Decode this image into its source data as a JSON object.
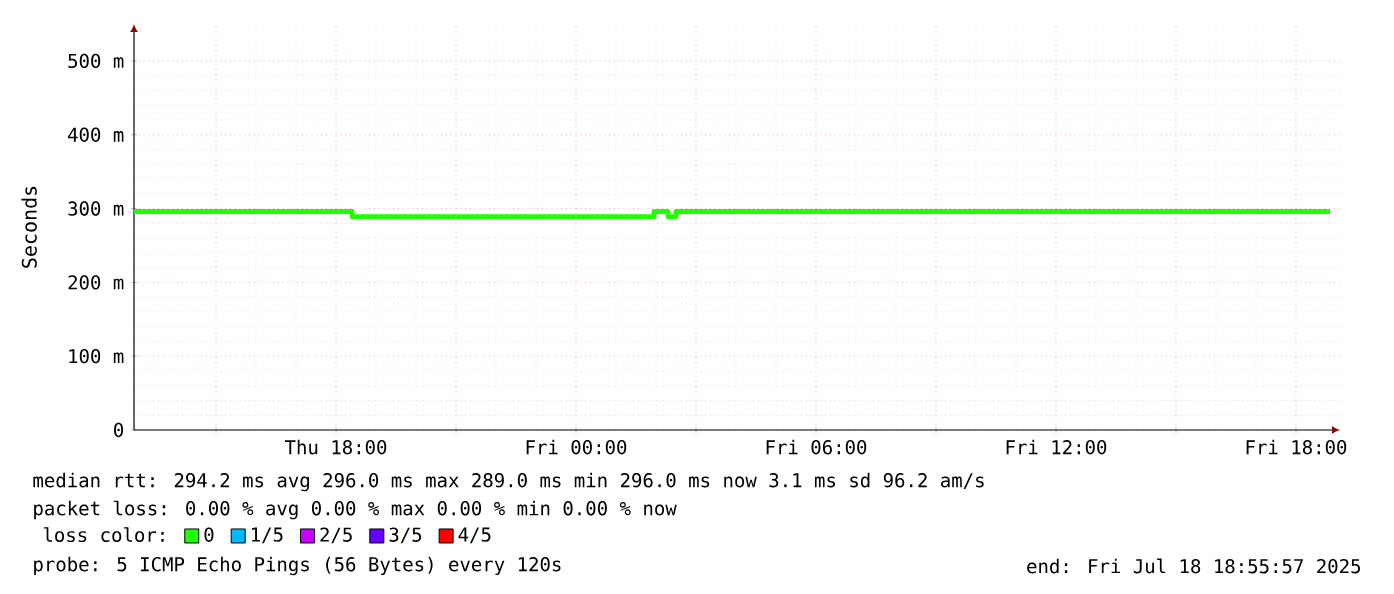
{
  "chart_data": {
    "type": "step",
    "ylabel": "Seconds",
    "legend_title": "loss color:",
    "legend": "bottom",
    "grid": true,
    "x": [
      "2025-07-17T12:57",
      "2025-07-17T18:24",
      "2025-07-18T01:57",
      "2025-07-18T02:18",
      "2025-07-18T02:30",
      "2025-07-18T18:51"
    ],
    "series": [
      {
        "name": "0",
        "color": "#20ff00",
        "values": [
          296,
          289,
          296,
          289,
          296,
          296
        ]
      },
      {
        "name": "1/5",
        "color": "#00b8ff",
        "values": [
          null,
          null,
          null,
          null,
          null,
          null
        ]
      },
      {
        "name": "2/5",
        "color": "#cc00ff",
        "values": [
          null,
          null,
          null,
          null,
          null,
          null
        ]
      },
      {
        "name": "3/5",
        "color": "#6600ff",
        "values": [
          null,
          null,
          null,
          null,
          null,
          null
        ]
      },
      {
        "name": "4/5",
        "color": "#ff0000",
        "values": [
          null,
          null,
          null,
          null,
          null,
          null
        ]
      }
    ],
    "xlim": [
      "2025-07-17T12:57",
      "2025-07-18T19:06"
    ],
    "xticks": [
      {
        "value": "2025-07-17T15:00",
        "label": null
      },
      {
        "value": "2025-07-17T18:00",
        "label": "Thu 18:00"
      },
      {
        "value": "2025-07-17T21:00",
        "label": null
      },
      {
        "value": "2025-07-18T00:00",
        "label": "Fri 00:00"
      },
      {
        "value": "2025-07-18T03:00",
        "label": null
      },
      {
        "value": "2025-07-18T06:00",
        "label": "Fri 06:00"
      },
      {
        "value": "2025-07-18T09:00",
        "label": null
      },
      {
        "value": "2025-07-18T12:00",
        "label": "Fri 12:00"
      },
      {
        "value": "2025-07-18T15:00",
        "label": null
      },
      {
        "value": "2025-07-18T18:00",
        "label": "Fri 18:00"
      }
    ],
    "ylim": [
      0,
      550
    ],
    "yticks": [
      0,
      {
        "value": 100,
        "label": "100 m"
      },
      {
        "value": 200,
        "label": "200 m"
      },
      {
        "value": 300,
        "label": "300 m"
      },
      {
        "value": 400,
        "label": "400 m"
      },
      {
        "value": 500,
        "label": "500 m"
      }
    ],
    "annotations": [
      "median rtt:  294.2 ms avg  296.0 ms max  289.0 ms min  296.0 ms now  3.1 ms sd  96.2   am/s",
      "packet loss: 0.00 % avg  0.00 % max  0.00 % min  0.00 % now",
      "probe:       5 ICMP Echo Pings (56 Bytes) every 120s",
      "end: Fri Jul 18 18:55:57 2025"
    ]
  }
}
